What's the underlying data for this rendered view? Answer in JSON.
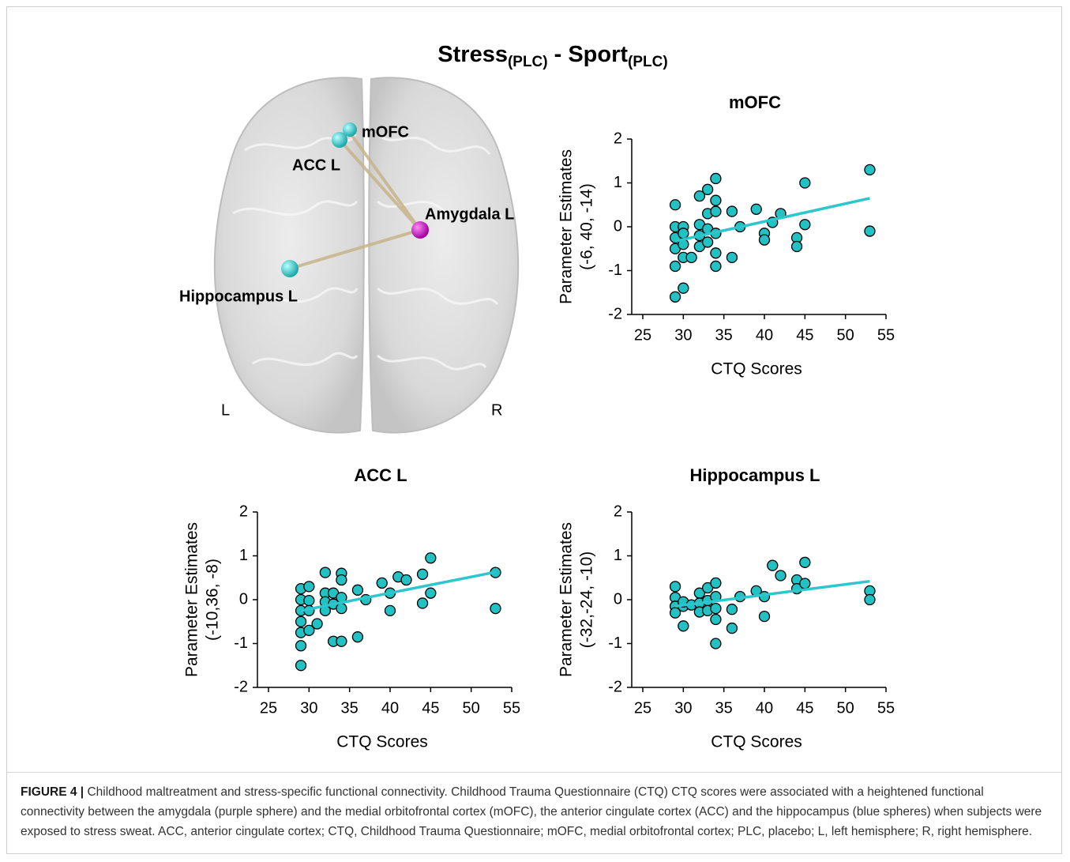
{
  "title": {
    "part1": "Stress",
    "sub1": "(PLC)",
    "part2": "- Sport",
    "sub2": "(PLC)"
  },
  "brain": {
    "labels": [
      "mOFC",
      "ACC L",
      "Amygdala L",
      "Hippocampus L",
      "L",
      "R"
    ]
  },
  "chart_data": [
    {
      "type": "scatter",
      "title": "mOFC",
      "xlabel": "CTQ Scores",
      "ylabel": [
        "Parameter Estimates",
        "(-6, 40, -14)"
      ],
      "color": "#22c1c3",
      "fit_color": "#2cc6cc",
      "x": [
        29,
        29,
        29,
        29,
        29,
        29,
        30,
        30,
        30,
        30,
        30,
        31,
        32,
        32,
        32,
        32,
        33,
        33,
        33,
        33,
        34,
        34,
        34,
        34,
        34,
        34,
        36,
        36,
        37,
        39,
        40,
        40,
        41,
        42,
        44,
        44,
        45,
        45,
        53,
        53
      ],
      "values": [
        0.5,
        0,
        -0.25,
        -0.5,
        -0.9,
        -1.6,
        0,
        -0.15,
        -0.4,
        -0.7,
        -1.4,
        -0.7,
        0.7,
        0.05,
        -0.2,
        -0.45,
        0.85,
        0.3,
        -0.05,
        -0.35,
        1.1,
        0.6,
        0.35,
        -0.15,
        -0.6,
        -0.9,
        0.35,
        -0.7,
        0,
        0.4,
        -0.15,
        -0.3,
        0.1,
        0.3,
        -0.25,
        -0.45,
        1.0,
        0.05,
        1.3,
        -0.1
      ],
      "fit": {
        "x": [
          29,
          53
        ],
        "y": [
          -0.33,
          0.65
        ]
      },
      "xlim": [
        25,
        55
      ],
      "ylim": [
        -2,
        2
      ],
      "xticks": [
        25,
        30,
        35,
        40,
        45,
        50,
        55
      ],
      "yticks": [
        -2,
        -1,
        0,
        1,
        2
      ]
    },
    {
      "type": "scatter",
      "title": "ACC L",
      "xlabel": "CTQ Scores",
      "ylabel": [
        "Parameter Estimates",
        "(-10,36, -8)"
      ],
      "color": "#22c1c3",
      "fit_color": "#2cc6cc",
      "x": [
        29,
        29,
        29,
        29,
        29,
        29,
        29,
        30,
        30,
        30,
        30,
        31,
        32,
        32,
        32,
        32,
        33,
        33,
        33,
        34,
        34,
        34,
        34,
        34,
        36,
        36,
        37,
        39,
        40,
        40,
        41,
        42,
        44,
        44,
        45,
        45,
        53,
        53
      ],
      "values": [
        0.25,
        0,
        -0.25,
        -0.5,
        -0.75,
        -1.05,
        -1.5,
        0.3,
        -0.02,
        -0.25,
        -0.7,
        -0.55,
        0.62,
        0.15,
        -0.05,
        -0.25,
        0.15,
        -0.1,
        -0.95,
        0.6,
        0.45,
        0.05,
        -0.2,
        -0.95,
        0.22,
        -0.85,
        0,
        0.38,
        0.15,
        -0.25,
        0.52,
        0.45,
        0.58,
        -0.08,
        0.95,
        0.15,
        0.62,
        -0.2
      ],
      "fit": {
        "x": [
          29,
          53
        ],
        "y": [
          -0.25,
          0.63
        ]
      },
      "xlim": [
        25,
        55
      ],
      "ylim": [
        -2,
        2
      ],
      "xticks": [
        25,
        30,
        35,
        40,
        45,
        50,
        55
      ],
      "yticks": [
        -2,
        -1,
        0,
        1,
        2
      ]
    },
    {
      "type": "scatter",
      "title": "Hippocampus L",
      "xlabel": "CTQ Scores",
      "ylabel": [
        "Parameter Estimates",
        "(-32,-24, -10)"
      ],
      "color": "#22c1c3",
      "fit_color": "#2cc6cc",
      "x": [
        29,
        29,
        29,
        29,
        30,
        30,
        30,
        31,
        32,
        32,
        32,
        33,
        33,
        33,
        34,
        34,
        34,
        34,
        34,
        36,
        36,
        37,
        39,
        40,
        40,
        41,
        42,
        44,
        44,
        45,
        45,
        53,
        53
      ],
      "values": [
        0.3,
        0.05,
        -0.15,
        -0.3,
        -0.15,
        -0.6,
        -0.05,
        -0.12,
        0.15,
        -0.08,
        -0.28,
        0.27,
        -0.02,
        -0.25,
        0.38,
        0.07,
        -0.2,
        -0.45,
        -1.0,
        -0.22,
        -0.65,
        0.07,
        0.2,
        0.07,
        -0.38,
        0.78,
        0.55,
        0.45,
        0.25,
        0.85,
        0.37,
        0.2,
        0
      ],
      "fit": {
        "x": [
          29,
          53
        ],
        "y": [
          -0.15,
          0.42
        ]
      },
      "xlim": [
        25,
        55
      ],
      "ylim": [
        -2,
        2
      ],
      "xticks": [
        25,
        30,
        35,
        40,
        45,
        50,
        55
      ],
      "yticks": [
        -2,
        -1,
        0,
        1,
        2
      ]
    }
  ],
  "caption": {
    "label": "FIGURE 4 |",
    "text": "Childhood maltreatment and stress-specific functional connectivity. Childhood Trauma Questionnaire (CTQ) CTQ scores were associated with a heightened functional connectivity between the amygdala (purple sphere) and the medial orbitofrontal cortex (mOFC), the anterior cingulate cortex (ACC) and the hippocampus (blue spheres) when subjects were exposed to stress sweat. ACC, anterior cingulate cortex; CTQ, Childhood Trauma Questionnaire; mOFC, medial orbitofrontal cortex; PLC, placebo; L, left hemisphere; R, right hemisphere."
  }
}
